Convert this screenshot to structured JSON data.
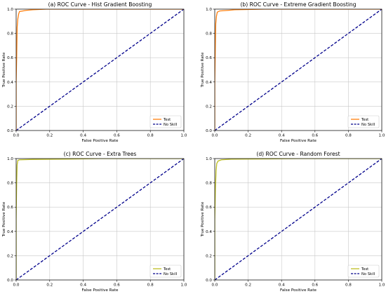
{
  "chart_data": [
    {
      "type": "line",
      "title": "(a) ROC Curve - Hist Gradient Boosting",
      "xlabel": "False Positive Rate",
      "ylabel": "True Positive Rate",
      "xlim": [
        0,
        1
      ],
      "ylim": [
        0,
        1
      ],
      "xticks": [
        "0.0",
        "0.2",
        "0.4",
        "0.6",
        "0.8",
        "1.0"
      ],
      "yticks": [
        "0.0",
        "0.2",
        "0.4",
        "0.6",
        "0.8",
        "1.0"
      ],
      "grid": true,
      "legend_position": "lower-right",
      "series": [
        {
          "name": "Test",
          "color": "#ff7f0e",
          "style": "solid",
          "points": [
            [
              0,
              0
            ],
            [
              0,
              0.4
            ],
            [
              0.003,
              0.6
            ],
            [
              0.006,
              0.85
            ],
            [
              0.01,
              0.92
            ],
            [
              0.015,
              0.96
            ],
            [
              0.02,
              0.98
            ],
            [
              0.04,
              0.985
            ],
            [
              0.06,
              0.99
            ],
            [
              0.1,
              0.995
            ],
            [
              0.18,
              1.0
            ],
            [
              1.0,
              1.0
            ]
          ]
        },
        {
          "name": "No Skill",
          "color": "#00008b",
          "style": "dashed",
          "points": [
            [
              0,
              0
            ],
            [
              1,
              1
            ]
          ]
        }
      ]
    },
    {
      "type": "line",
      "title": "(b) ROC Curve - Extreme Gradient Boosting",
      "xlabel": "False Positive Rate",
      "ylabel": "True Positive Rate",
      "xlim": [
        0,
        1
      ],
      "ylim": [
        0,
        1
      ],
      "xticks": [
        "0.0",
        "0.2",
        "0.4",
        "0.6",
        "0.8",
        "1.0"
      ],
      "yticks": [
        "0.0",
        "0.2",
        "0.4",
        "0.6",
        "0.8",
        "1.0"
      ],
      "grid": true,
      "legend_position": "lower-right",
      "series": [
        {
          "name": "Test",
          "color": "#ff7f0e",
          "style": "solid",
          "points": [
            [
              0,
              0
            ],
            [
              0,
              0.4
            ],
            [
              0.003,
              0.65
            ],
            [
              0.006,
              0.88
            ],
            [
              0.01,
              0.94
            ],
            [
              0.015,
              0.975
            ],
            [
              0.03,
              0.985
            ],
            [
              0.08,
              0.99
            ],
            [
              0.12,
              0.995
            ],
            [
              0.3,
              1.0
            ],
            [
              1.0,
              1.0
            ]
          ]
        },
        {
          "name": "No Skill",
          "color": "#00008b",
          "style": "dashed",
          "points": [
            [
              0,
              0
            ],
            [
              1,
              1
            ]
          ]
        }
      ]
    },
    {
      "type": "line",
      "title": "(c) ROC Curve - Extra Trees",
      "xlabel": "False Positive Rate",
      "ylabel": "True Positive Rate",
      "xlim": [
        0,
        1
      ],
      "ylim": [
        0,
        1
      ],
      "xticks": [
        "0.0",
        "0.2",
        "0.4",
        "0.6",
        "0.8",
        "1.0"
      ],
      "yticks": [
        "0.0",
        "0.2",
        "0.4",
        "0.6",
        "0.8",
        "1.0"
      ],
      "grid": true,
      "legend_position": "lower-right",
      "series": [
        {
          "name": "Test",
          "color": "#bcbd22",
          "style": "solid",
          "points": [
            [
              0,
              0
            ],
            [
              0,
              0.5
            ],
            [
              0.003,
              0.8
            ],
            [
              0.006,
              0.95
            ],
            [
              0.01,
              0.985
            ],
            [
              0.02,
              0.99
            ],
            [
              0.1,
              0.993
            ],
            [
              0.3,
              0.996
            ],
            [
              0.5,
              1.0
            ],
            [
              1.0,
              1.0
            ]
          ]
        },
        {
          "name": "No Skill",
          "color": "#00008b",
          "style": "dashed",
          "points": [
            [
              0,
              0
            ],
            [
              1,
              1
            ]
          ]
        }
      ]
    },
    {
      "type": "line",
      "title": "(d) ROC Curve - Random Forest",
      "xlabel": "False Positive Rate",
      "ylabel": "True Positive Rate",
      "xlim": [
        0,
        1
      ],
      "ylim": [
        0,
        1
      ],
      "xticks": [
        "0.0",
        "0.2",
        "0.4",
        "0.6",
        "0.8",
        "1.0"
      ],
      "yticks": [
        "0.0",
        "0.2",
        "0.4",
        "0.6",
        "0.8",
        "1.0"
      ],
      "grid": true,
      "legend_position": "lower-right",
      "series": [
        {
          "name": "Test",
          "color": "#bcbd22",
          "style": "solid",
          "points": [
            [
              0,
              0
            ],
            [
              0,
              0.5
            ],
            [
              0.004,
              0.75
            ],
            [
              0.008,
              0.9
            ],
            [
              0.012,
              0.96
            ],
            [
              0.02,
              0.98
            ],
            [
              0.04,
              0.99
            ],
            [
              0.1,
              0.995
            ],
            [
              0.3,
              0.997
            ],
            [
              0.5,
              1.0
            ],
            [
              1.0,
              1.0
            ]
          ]
        },
        {
          "name": "No Skill",
          "color": "#00008b",
          "style": "dashed",
          "points": [
            [
              0,
              0
            ],
            [
              1,
              1
            ]
          ]
        }
      ]
    }
  ]
}
